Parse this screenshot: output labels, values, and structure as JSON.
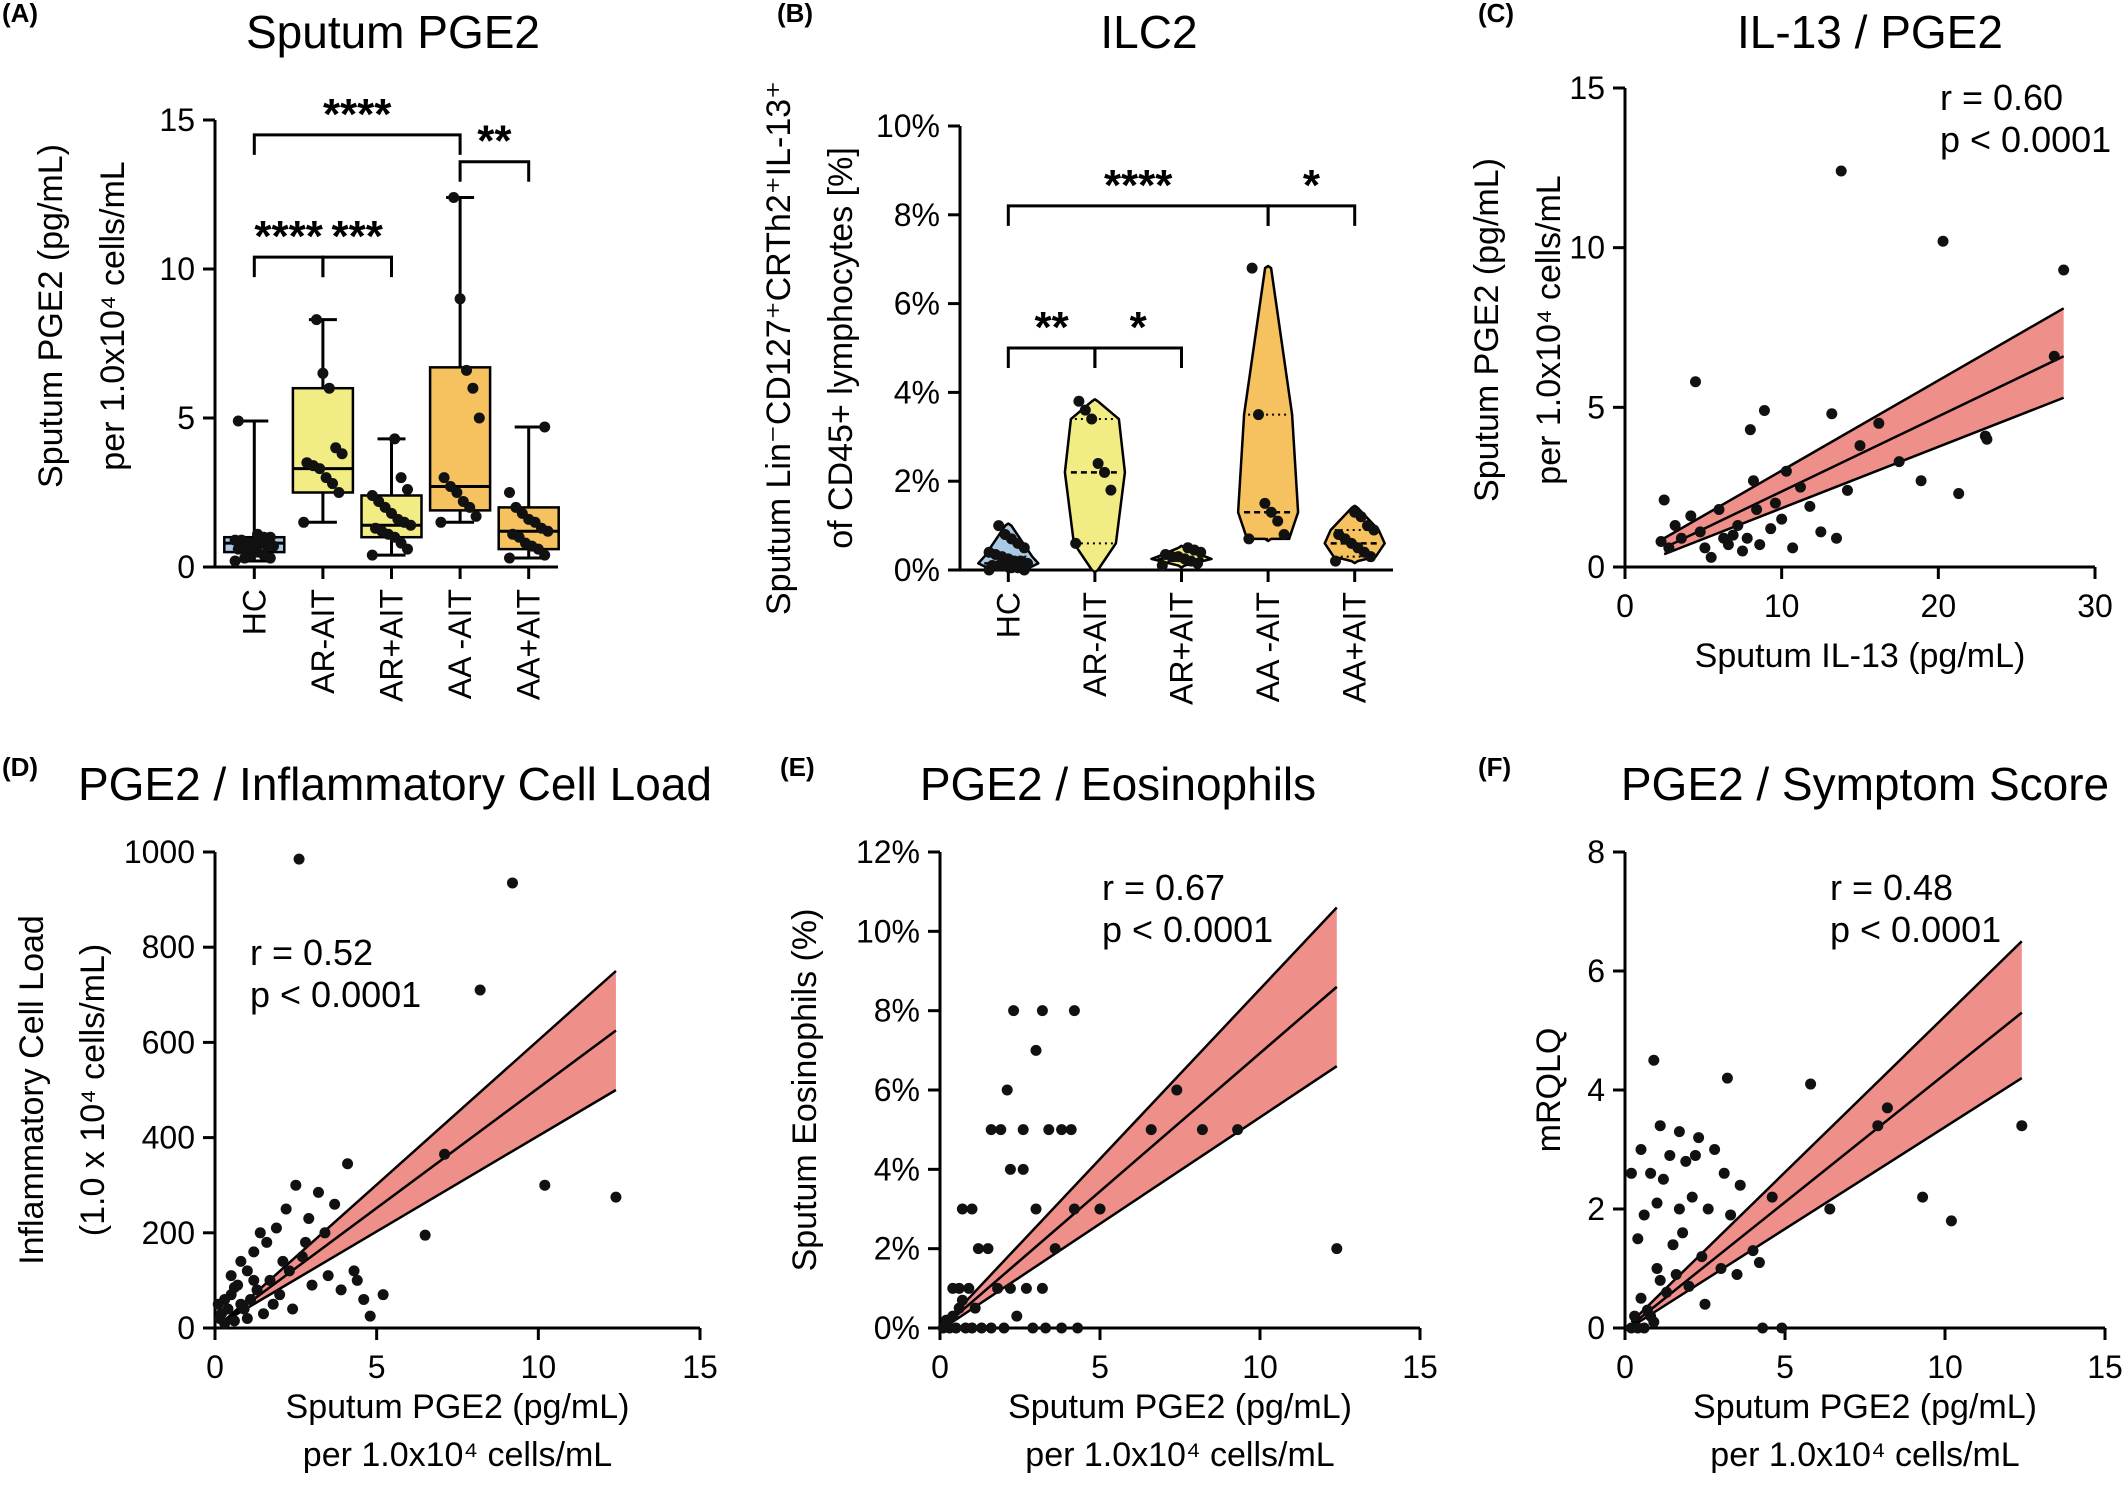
{
  "chart_data": [
    {
      "id": "A",
      "type": "box",
      "panel_label": "(A)",
      "title": "Sputum PGE2",
      "ylabel": [
        "Sputum PGE2 (pg/mL)",
        "per 1.0x10⁴ cells/mL"
      ],
      "ylim": [
        0,
        15
      ],
      "yticks": [
        0,
        5,
        10,
        15
      ],
      "categories": [
        "HC",
        "AR-AIT",
        "AR+AIT",
        "AA -AIT",
        "AA+AIT"
      ],
      "colors": [
        "#a9c9e6",
        "#f2ec84",
        "#f2ec84",
        "#f6c15f",
        "#f6c15f"
      ],
      "boxes": [
        {
          "min": 0.2,
          "q1": 0.5,
          "median": 0.8,
          "q3": 1.0,
          "max": 4.9
        },
        {
          "min": 1.5,
          "q1": 2.5,
          "median": 3.3,
          "q3": 6.0,
          "max": 8.3
        },
        {
          "min": 0.4,
          "q1": 1.0,
          "median": 1.4,
          "q3": 2.4,
          "max": 4.3
        },
        {
          "min": 1.5,
          "q1": 1.9,
          "median": 2.7,
          "q3": 6.7,
          "max": 12.4
        },
        {
          "min": 0.3,
          "q1": 0.6,
          "median": 1.2,
          "q3": 2.0,
          "max": 4.7
        }
      ],
      "points": [
        [
          0.2,
          0.3,
          0.4,
          0.5,
          0.5,
          0.6,
          0.6,
          0.7,
          0.7,
          0.8,
          0.8,
          0.8,
          0.9,
          0.9,
          1.0,
          1.0,
          1.1,
          0.4,
          0.3,
          4.9
        ],
        [
          1.5,
          2.5,
          2.8,
          3.0,
          3.3,
          3.4,
          3.5,
          3.8,
          4.0,
          6.0,
          6.5,
          8.3
        ],
        [
          0.4,
          0.6,
          0.8,
          1.0,
          1.1,
          1.2,
          1.3,
          1.4,
          1.5,
          1.6,
          1.8,
          2.0,
          2.2,
          2.4,
          2.6,
          3.0,
          4.3
        ],
        [
          1.5,
          1.7,
          2.0,
          2.2,
          2.5,
          2.7,
          3.0,
          5.0,
          6.0,
          6.6,
          9.0,
          12.4
        ],
        [
          0.3,
          0.4,
          0.6,
          0.7,
          0.8,
          1.0,
          1.1,
          1.2,
          1.3,
          1.5,
          1.6,
          1.8,
          2.0,
          2.5,
          4.7
        ]
      ],
      "significance": [
        {
          "from": 0,
          "to": 3,
          "label": "****",
          "y": 14.5
        },
        {
          "from": 3,
          "to": 4,
          "label": "**",
          "y": 13.6
        },
        {
          "from": 0,
          "to": 1,
          "label": "****",
          "y": 10.4
        },
        {
          "from": 1,
          "to": 2,
          "label": "***",
          "y": 10.4
        }
      ]
    },
    {
      "id": "B",
      "type": "violin",
      "panel_label": "(B)",
      "title": "ILC2",
      "ylabel": [
        "Sputum Lin⁻CD127⁺CRTh2⁺IL-13⁺",
        "of CD45+ lymphocytes [%]"
      ],
      "ylim": [
        0,
        10
      ],
      "yticks": [
        0,
        2,
        4,
        6,
        8,
        10
      ],
      "ytick_labels": [
        "0%",
        "2%",
        "4%",
        "6%",
        "8%",
        "10%"
      ],
      "categories": [
        "HC",
        "AR-AIT",
        "AR+AIT",
        "AA -AIT",
        "AA+AIT"
      ],
      "colors": [
        "#a9c9e6",
        "#f2ec84",
        "#f2ec84",
        "#f6c15f",
        "#f6c15f"
      ],
      "violins": [
        {
          "min": 0.0,
          "q1": 0.05,
          "median": 0.15,
          "q3": 0.3,
          "max": 1.0
        },
        {
          "min": 0.0,
          "q1": 0.6,
          "median": 2.2,
          "q3": 3.4,
          "max": 3.8
        },
        {
          "min": 0.1,
          "q1": 0.2,
          "median": 0.25,
          "q3": 0.3,
          "max": 0.5
        },
        {
          "min": 0.7,
          "q1": 0.7,
          "median": 1.3,
          "q3": 3.5,
          "max": 6.8
        },
        {
          "min": 0.2,
          "q1": 0.3,
          "median": 0.6,
          "q3": 0.9,
          "max": 1.4
        }
      ],
      "points": [
        [
          0.0,
          0.0,
          0.05,
          0.05,
          0.1,
          0.1,
          0.1,
          0.15,
          0.2,
          0.2,
          0.25,
          0.3,
          0.35,
          0.4,
          0.5,
          0.6,
          0.7,
          0.8,
          1.0
        ],
        [
          0.6,
          1.8,
          2.2,
          2.4,
          3.4,
          3.6,
          3.8
        ],
        [
          0.1,
          0.15,
          0.2,
          0.25,
          0.3,
          0.3,
          0.35,
          0.4,
          0.45,
          0.5
        ],
        [
          0.7,
          0.8,
          1.1,
          1.3,
          1.5,
          3.5,
          6.8
        ],
        [
          0.2,
          0.3,
          0.4,
          0.5,
          0.6,
          0.7,
          0.8,
          0.9,
          1.0,
          1.2,
          1.3
        ]
      ],
      "significance": [
        {
          "from": 0,
          "to": 3,
          "label": "****",
          "y": 8.2
        },
        {
          "from": 3,
          "to": 4,
          "label": "*",
          "y": 8.2
        },
        {
          "from": 0,
          "to": 1,
          "label": "**",
          "y": 5.0
        },
        {
          "from": 1,
          "to": 2,
          "label": "*",
          "y": 5.0
        }
      ]
    },
    {
      "id": "C",
      "type": "scatter",
      "panel_label": "(C)",
      "title": "IL-13 / PGE2",
      "xlabel": [
        "Sputum IL-13 (pg/mL)"
      ],
      "ylabel": [
        "Sputum PGE2 (pg/mL)",
        "per 1.0x10⁴ cells/mL"
      ],
      "xlim": [
        0,
        30
      ],
      "ylim": [
        0,
        15
      ],
      "xticks": [
        0,
        10,
        20,
        30
      ],
      "yticks": [
        0,
        5,
        10,
        15
      ],
      "stats": [
        "r = 0.60",
        "p < 0.0001"
      ],
      "fit": {
        "x": [
          2.5,
          28
        ],
        "y": [
          0.6,
          6.6
        ],
        "band_low": [
          0.4,
          5.3
        ],
        "band_high": [
          0.9,
          8.1
        ]
      },
      "points": [
        [
          2.3,
          0.8
        ],
        [
          2.5,
          2.1
        ],
        [
          2.8,
          0.6
        ],
        [
          3.2,
          1.3
        ],
        [
          3.6,
          0.9
        ],
        [
          4.2,
          1.6
        ],
        [
          4.5,
          5.8
        ],
        [
          4.8,
          1.1
        ],
        [
          5.1,
          0.6
        ],
        [
          5.5,
          0.3
        ],
        [
          6.0,
          1.8
        ],
        [
          6.3,
          0.9
        ],
        [
          6.6,
          0.7
        ],
        [
          6.9,
          1.0
        ],
        [
          7.2,
          1.3
        ],
        [
          7.5,
          0.5
        ],
        [
          7.8,
          0.9
        ],
        [
          8.0,
          4.3
        ],
        [
          8.2,
          2.7
        ],
        [
          8.4,
          1.8
        ],
        [
          8.6,
          0.7
        ],
        [
          8.9,
          4.9
        ],
        [
          9.3,
          1.2
        ],
        [
          9.6,
          2.0
        ],
        [
          10.0,
          1.5
        ],
        [
          10.3,
          3.0
        ],
        [
          10.7,
          0.6
        ],
        [
          11.2,
          2.5
        ],
        [
          11.8,
          1.9
        ],
        [
          12.5,
          1.1
        ],
        [
          13.2,
          4.8
        ],
        [
          13.5,
          0.9
        ],
        [
          13.8,
          12.4
        ],
        [
          14.2,
          2.4
        ],
        [
          15.0,
          3.8
        ],
        [
          16.2,
          4.5
        ],
        [
          17.5,
          3.3
        ],
        [
          18.9,
          2.7
        ],
        [
          20.3,
          10.2
        ],
        [
          21.3,
          2.3
        ],
        [
          23.0,
          4.1
        ],
        [
          23.1,
          4.0
        ],
        [
          27.4,
          6.6
        ],
        [
          28.0,
          9.3
        ]
      ]
    },
    {
      "id": "D",
      "type": "scatter",
      "panel_label": "(D)",
      "title": "PGE2 / Inflammatory Cell Load",
      "xlabel": [
        "Sputum PGE2 (pg/mL)",
        "per 1.0x10⁴ cells/mL"
      ],
      "ylabel": [
        "Inflammatory Cell Load",
        "(1.0 x 10⁴ cells/mL)"
      ],
      "xlim": [
        0,
        15
      ],
      "ylim": [
        0,
        1000
      ],
      "xticks": [
        0,
        5,
        10,
        15
      ],
      "yticks": [
        0,
        200,
        400,
        600,
        800,
        1000
      ],
      "stats": [
        "r = 0.52",
        "p < 0.0001"
      ],
      "fit": {
        "x": [
          0.2,
          12.4
        ],
        "y": [
          10,
          625
        ],
        "band_low": [
          10,
          500
        ],
        "band_high": [
          10,
          750
        ]
      },
      "points": [
        [
          2.6,
          985
        ],
        [
          9.2,
          935
        ],
        [
          8.2,
          710
        ],
        [
          7.1,
          365
        ],
        [
          10.2,
          300
        ],
        [
          12.4,
          275
        ],
        [
          6.5,
          195
        ],
        [
          4.1,
          345
        ],
        [
          3.2,
          285
        ],
        [
          3.7,
          260
        ],
        [
          4.3,
          120
        ],
        [
          4.6,
          60
        ],
        [
          4.8,
          25
        ],
        [
          5.2,
          70
        ],
        [
          3.4,
          200
        ],
        [
          2.9,
          230
        ],
        [
          2.5,
          300
        ],
        [
          2.2,
          250
        ],
        [
          1.9,
          210
        ],
        [
          1.6,
          180
        ],
        [
          1.4,
          200
        ],
        [
          1.2,
          160
        ],
        [
          1.0,
          120
        ],
        [
          0.8,
          140
        ],
        [
          0.7,
          90
        ],
        [
          0.5,
          70
        ],
        [
          0.4,
          40
        ],
        [
          0.3,
          60
        ],
        [
          0.2,
          30
        ],
        [
          0.3,
          10
        ],
        [
          0.6,
          15
        ],
        [
          0.9,
          40
        ],
        [
          1.1,
          60
        ],
        [
          1.3,
          80
        ],
        [
          1.5,
          30
        ],
        [
          1.7,
          100
        ],
        [
          2.0,
          70
        ],
        [
          2.3,
          120
        ],
        [
          2.7,
          150
        ],
        [
          3.0,
          90
        ],
        [
          3.5,
          110
        ],
        [
          3.9,
          80
        ],
        [
          4.4,
          100
        ],
        [
          0.5,
          110
        ],
        [
          0.6,
          85
        ],
        [
          0.8,
          50
        ],
        [
          1.0,
          20
        ],
        [
          1.2,
          100
        ],
        [
          1.8,
          50
        ],
        [
          2.1,
          140
        ],
        [
          2.4,
          40
        ],
        [
          2.8,
          180
        ],
        [
          0.1,
          50
        ],
        [
          0.15,
          20
        ]
      ]
    },
    {
      "id": "E",
      "type": "scatter",
      "panel_label": "(E)",
      "title": "PGE2 / Eosinophils",
      "xlabel": [
        "Sputum PGE2 (pg/mL)",
        "per 1.0x10⁴ cells/mL"
      ],
      "ylabel": [
        "Sputum Eosinophils (%)"
      ],
      "xlim": [
        0,
        15
      ],
      "ylim": [
        0,
        12
      ],
      "xticks": [
        0,
        5,
        10,
        15
      ],
      "yticks": [
        0,
        2,
        4,
        6,
        8,
        10,
        12
      ],
      "ytick_labels": [
        "0%",
        "2%",
        "4%",
        "6%",
        "8%",
        "10%",
        "12%"
      ],
      "stats": [
        "r = 0.67",
        "p < 0.0001"
      ],
      "fit": {
        "x": [
          0.2,
          12.4
        ],
        "y": [
          0.1,
          8.6
        ],
        "band_low": [
          0.05,
          6.6
        ],
        "band_high": [
          0.15,
          10.6
        ]
      },
      "points": [
        [
          2.3,
          8
        ],
        [
          3.2,
          8
        ],
        [
          4.2,
          8
        ],
        [
          3.0,
          7
        ],
        [
          2.1,
          6
        ],
        [
          1.6,
          5
        ],
        [
          1.9,
          5
        ],
        [
          2.6,
          5
        ],
        [
          3.4,
          5
        ],
        [
          3.8,
          5
        ],
        [
          4.1,
          5
        ],
        [
          6.6,
          5
        ],
        [
          7.4,
          6
        ],
        [
          8.2,
          5
        ],
        [
          9.3,
          5
        ],
        [
          12.4,
          2
        ],
        [
          4.2,
          3
        ],
        [
          5.0,
          3
        ],
        [
          3.0,
          3
        ],
        [
          2.2,
          4
        ],
        [
          2.6,
          4
        ],
        [
          0.7,
          3
        ],
        [
          1.0,
          3
        ],
        [
          1.2,
          2
        ],
        [
          1.5,
          2
        ],
        [
          1.8,
          1
        ],
        [
          2.2,
          1
        ],
        [
          2.7,
          1
        ],
        [
          3.2,
          1
        ],
        [
          3.6,
          2
        ],
        [
          0.3,
          0
        ],
        [
          0.5,
          0
        ],
        [
          0.8,
          0
        ],
        [
          1.0,
          0
        ],
        [
          1.3,
          0
        ],
        [
          1.6,
          0
        ],
        [
          2.0,
          0
        ],
        [
          2.4,
          0.3
        ],
        [
          2.9,
          0
        ],
        [
          3.3,
          0
        ],
        [
          3.8,
          0
        ],
        [
          4.3,
          0
        ],
        [
          0.4,
          1
        ],
        [
          0.6,
          1
        ],
        [
          0.9,
          1
        ],
        [
          0.2,
          0.2
        ],
        [
          0.4,
          0.3
        ],
        [
          0.6,
          0.5
        ],
        [
          0.1,
          0
        ],
        [
          0.7,
          0.7
        ],
        [
          1.1,
          0.5
        ]
      ]
    },
    {
      "id": "F",
      "type": "scatter",
      "panel_label": "(F)",
      "title": "PGE2 / Symptom Score",
      "xlabel": [
        "Sputum PGE2 (pg/mL)",
        "per 1.0x10⁴ cells/mL"
      ],
      "ylabel": [
        "mRQLQ"
      ],
      "xlim": [
        0,
        15
      ],
      "ylim": [
        0,
        8
      ],
      "xticks": [
        0,
        5,
        10,
        15
      ],
      "yticks": [
        0,
        2,
        4,
        6,
        8
      ],
      "stats": [
        "r = 0.48",
        "p < 0.0001"
      ],
      "fit": {
        "x": [
          0.2,
          12.4
        ],
        "y": [
          0.05,
          5.3
        ],
        "band_low": [
          0.02,
          4.2
        ],
        "band_high": [
          0.1,
          6.5
        ]
      },
      "points": [
        [
          0.9,
          4.5
        ],
        [
          3.2,
          4.2
        ],
        [
          1.1,
          3.4
        ],
        [
          1.7,
          3.3
        ],
        [
          2.3,
          3.2
        ],
        [
          2.8,
          3.0
        ],
        [
          1.4,
          2.9
        ],
        [
          1.9,
          2.8
        ],
        [
          3.1,
          2.6
        ],
        [
          3.6,
          2.4
        ],
        [
          0.8,
          2.6
        ],
        [
          1.2,
          2.5
        ],
        [
          0.2,
          2.6
        ],
        [
          2.1,
          2.2
        ],
        [
          2.6,
          2.0
        ],
        [
          3.3,
          1.9
        ],
        [
          0.6,
          1.9
        ],
        [
          0.4,
          1.5
        ],
        [
          1.5,
          1.4
        ],
        [
          1.8,
          1.6
        ],
        [
          2.4,
          1.2
        ],
        [
          3.0,
          1.0
        ],
        [
          4.0,
          1.3
        ],
        [
          4.2,
          1.1
        ],
        [
          5.8,
          4.1
        ],
        [
          7.9,
          3.4
        ],
        [
          8.2,
          3.7
        ],
        [
          6.4,
          2.0
        ],
        [
          4.6,
          2.2
        ],
        [
          9.3,
          2.2
        ],
        [
          10.2,
          1.8
        ],
        [
          12.4,
          3.4
        ],
        [
          0.5,
          0.5
        ],
        [
          0.7,
          0.3
        ],
        [
          0.9,
          0.1
        ],
        [
          1.1,
          0.8
        ],
        [
          1.3,
          0.6
        ],
        [
          0.3,
          0.2
        ],
        [
          0.4,
          0.0
        ],
        [
          0.6,
          0.0
        ],
        [
          0.2,
          0.0
        ],
        [
          1.6,
          0.9
        ],
        [
          2.0,
          0.7
        ],
        [
          2.5,
          0.4
        ],
        [
          3.5,
          0.9
        ],
        [
          4.3,
          0.0
        ],
        [
          4.9,
          0.0
        ],
        [
          0.8,
          0.2
        ],
        [
          1.0,
          1.0
        ],
        [
          1.7,
          2.0
        ],
        [
          2.2,
          2.9
        ],
        [
          0.5,
          3.0
        ],
        [
          1.0,
          2.1
        ]
      ]
    }
  ]
}
